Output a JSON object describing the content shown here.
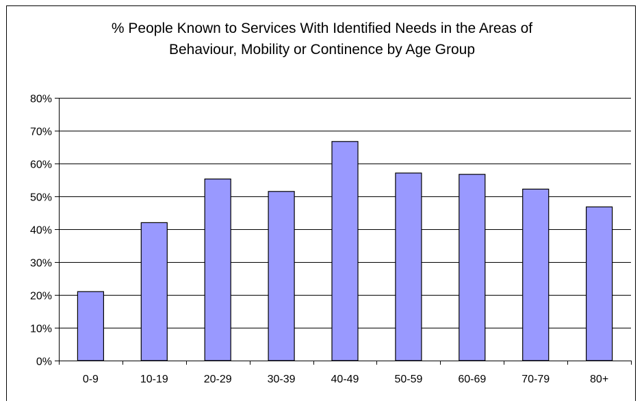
{
  "chart_data": {
    "type": "bar",
    "title": "% People Known to Services With Identified Needs in the Areas of\nBehaviour, Mobility or Continence by Age Group",
    "xlabel": "",
    "ylabel": "",
    "categories": [
      "0-9",
      "10-19",
      "20-29",
      "30-39",
      "40-49",
      "50-59",
      "60-69",
      "70-79",
      "80+"
    ],
    "values": [
      0.21,
      0.42,
      0.553,
      0.515,
      0.667,
      0.571,
      0.567,
      0.522,
      0.468
    ],
    "ylim": [
      0,
      0.8
    ],
    "yticks": [
      0,
      0.1,
      0.2,
      0.3,
      0.4,
      0.5,
      0.6,
      0.7,
      0.8
    ],
    "ytick_labels": [
      "0%",
      "10%",
      "20%",
      "30%",
      "40%",
      "50%",
      "60%",
      "70%",
      "80%"
    ],
    "grid": true,
    "legend": "none",
    "colors": {
      "bar_fill": "#9999ff",
      "bar_stroke": "#000000",
      "grid": "#000000",
      "background": "#ffffff"
    }
  }
}
